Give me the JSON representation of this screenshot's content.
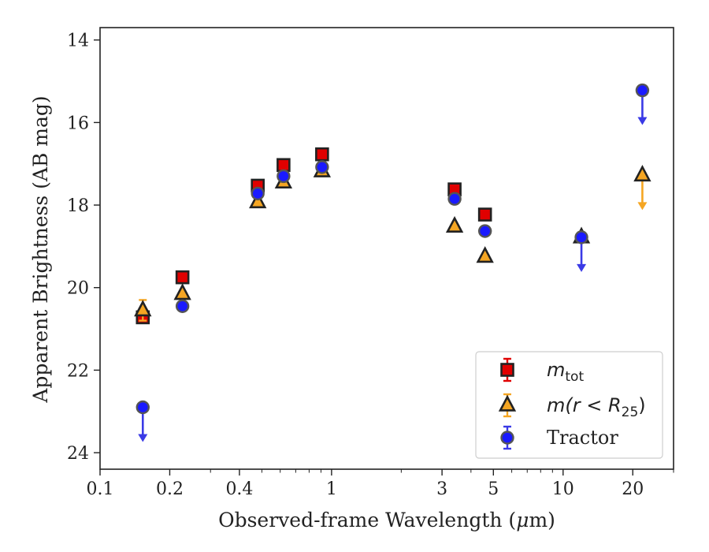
{
  "chart_data": {
    "type": "scatter",
    "title": "",
    "xlabel": "Observed-frame Wavelength (μm)",
    "xlabel_parts": {
      "pre": "Observed-frame Wavelength (",
      "mu": "μ",
      "post": "m)"
    },
    "ylabel": "Apparent Brightness (AB mag)",
    "xscale": "log",
    "xlim": [
      0.1,
      30
    ],
    "ylim": [
      24.4,
      13.7
    ],
    "y_inverted": true,
    "grid": false,
    "legend_position": "bottom-right",
    "x_ticks": [
      {
        "value": 0.1,
        "label": "0.1"
      },
      {
        "value": 0.2,
        "label": "0.2"
      },
      {
        "value": 0.4,
        "label": "0.4"
      },
      {
        "value": 1,
        "label": "1"
      },
      {
        "value": 3,
        "label": "3"
      },
      {
        "value": 5,
        "label": "5"
      },
      {
        "value": 10,
        "label": "10"
      },
      {
        "value": 20,
        "label": "20"
      }
    ],
    "y_ticks": [
      {
        "value": 14,
        "label": "14"
      },
      {
        "value": 16,
        "label": "16"
      },
      {
        "value": 18,
        "label": "18"
      },
      {
        "value": 20,
        "label": "20"
      },
      {
        "value": 22,
        "label": "22"
      },
      {
        "value": 24,
        "label": "24"
      }
    ],
    "series": [
      {
        "name": "m_tot",
        "legend": {
          "base": "m",
          "sub": "tot",
          "tail": ""
        },
        "marker": "square",
        "color": "#e00000",
        "error_color": "#e00000",
        "points": [
          {
            "x": 0.153,
            "y": 20.72
          },
          {
            "x": 0.227,
            "y": 19.75
          },
          {
            "x": 0.48,
            "y": 17.53
          },
          {
            "x": 0.62,
            "y": 17.03
          },
          {
            "x": 0.91,
            "y": 16.77
          },
          {
            "x": 3.4,
            "y": 17.62
          },
          {
            "x": 4.6,
            "y": 18.23
          }
        ]
      },
      {
        "name": "m(r < R25)",
        "legend": {
          "base": "m(r < R",
          "sub": "25",
          "tail": ")"
        },
        "marker": "triangle",
        "color": "#f5a623",
        "error_color": "#f5a623",
        "points": [
          {
            "x": 0.153,
            "y": 20.55,
            "yerr": 0.25
          },
          {
            "x": 0.227,
            "y": 20.15
          },
          {
            "x": 0.48,
            "y": 17.93
          },
          {
            "x": 0.62,
            "y": 17.45
          },
          {
            "x": 0.91,
            "y": 17.18
          },
          {
            "x": 3.4,
            "y": 18.52
          },
          {
            "x": 4.6,
            "y": 19.25
          },
          {
            "x": 12,
            "y": 18.78
          },
          {
            "x": 22,
            "y": 17.28,
            "upper_limit": true
          }
        ]
      },
      {
        "name": "Tractor",
        "legend": {
          "text": "Tractor"
        },
        "marker": "circle",
        "color": "#1a1aff",
        "error_color": "#3a3ae6",
        "points": [
          {
            "x": 0.153,
            "y": 22.9,
            "upper_limit": true
          },
          {
            "x": 0.227,
            "y": 20.45
          },
          {
            "x": 0.48,
            "y": 17.72
          },
          {
            "x": 0.62,
            "y": 17.3
          },
          {
            "x": 0.91,
            "y": 17.08
          },
          {
            "x": 3.4,
            "y": 17.85
          },
          {
            "x": 4.6,
            "y": 18.63
          },
          {
            "x": 12,
            "y": 18.78,
            "upper_limit": true
          },
          {
            "x": 22,
            "y": 15.22,
            "upper_limit": true
          }
        ]
      }
    ]
  }
}
